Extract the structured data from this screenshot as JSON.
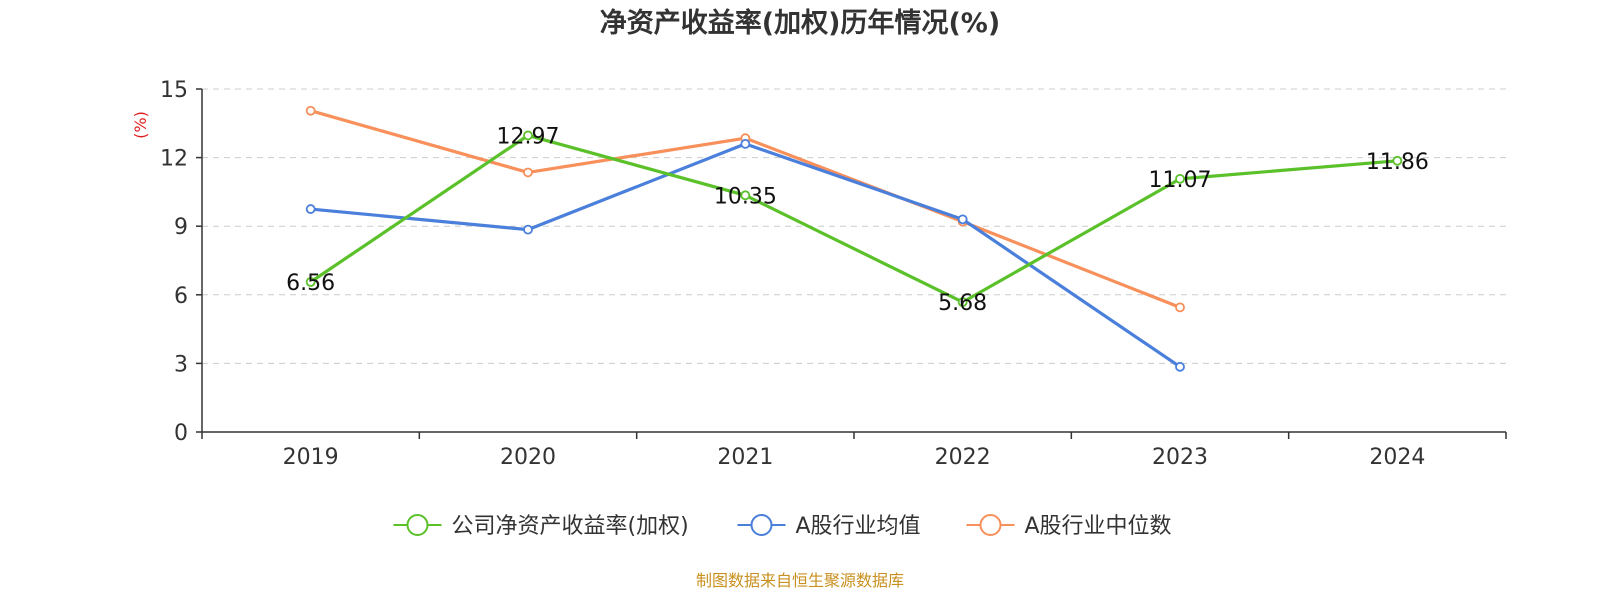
{
  "chart_data": {
    "type": "line",
    "title": "净资产收益率(加权)历年情况(%)",
    "ylabel": "(%)",
    "categories": [
      "2019",
      "2020",
      "2021",
      "2022",
      "2023",
      "2024"
    ],
    "ylim": [
      0,
      15
    ],
    "yticks": [
      "0",
      "3",
      "6",
      "9",
      "12",
      "15"
    ],
    "grid": true,
    "legend_position": "bottom",
    "series": [
      {
        "name": "公司净资产收益率(加权)",
        "color": "#5bc12a",
        "values": [
          6.56,
          12.97,
          10.35,
          5.68,
          11.07,
          11.86
        ],
        "labels": [
          "6.56",
          "12.97",
          "10.35",
          "5.68",
          "11.07",
          "11.86"
        ]
      },
      {
        "name": "A股行业均值",
        "color": "#4a7fdb",
        "values": [
          9.75,
          8.85,
          12.6,
          9.3,
          2.85,
          null
        ]
      },
      {
        "name": "A股行业中位数",
        "color": "#f7905a",
        "values": [
          14.05,
          11.35,
          12.85,
          9.2,
          5.45,
          null
        ]
      }
    ]
  },
  "source_note": "制图数据来自恒生聚源数据库"
}
